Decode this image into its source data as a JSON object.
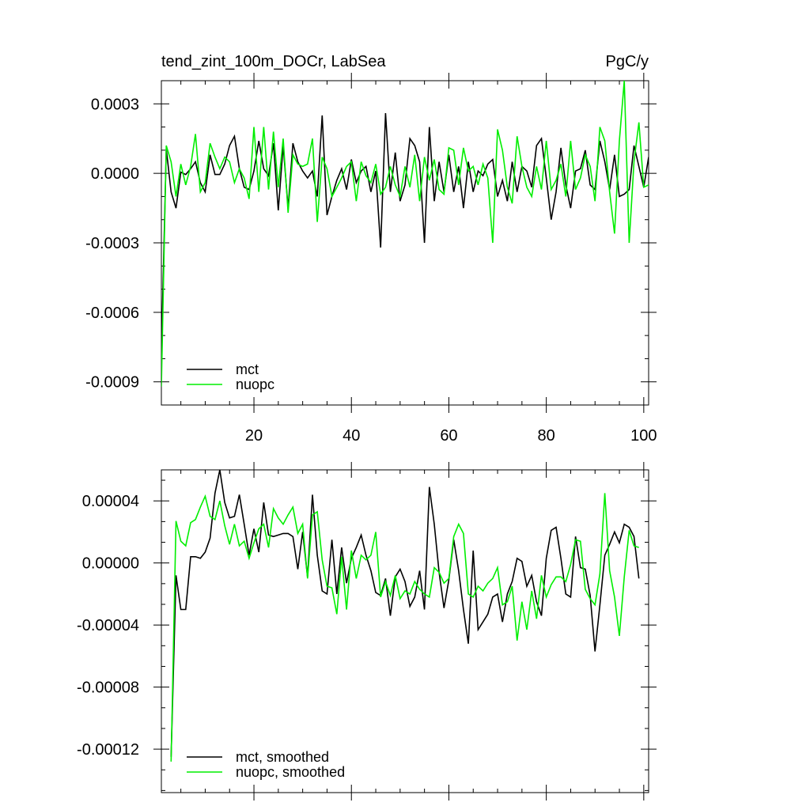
{
  "chart_data": [
    {
      "type": "line",
      "title": "tend_zint_100m_DOCr, LabSea",
      "units": "PgC/y",
      "xlim": [
        1,
        101
      ],
      "ylim": [
        -0.001,
        0.0004
      ],
      "x_ticks": [
        20,
        40,
        60,
        80,
        100
      ],
      "x_tick_labels": [
        "20",
        "40",
        "60",
        "80",
        "100"
      ],
      "y_ticks": [
        0.0003,
        0.0,
        -0.0003,
        -0.0006,
        -0.0009
      ],
      "y_tick_labels": [
        "0.0003",
        "0.0000",
        "-0.0003",
        "-0.0006",
        "-0.0009"
      ],
      "legend_position": "bottom-left",
      "series": [
        {
          "name": "mct",
          "color": "#000000",
          "x": [
            1,
            2,
            3,
            4,
            5,
            6,
            7,
            8,
            9,
            10,
            11,
            12,
            13,
            14,
            15,
            16,
            17,
            18,
            19,
            20,
            21,
            22,
            23,
            24,
            25,
            26,
            27,
            28,
            29,
            30,
            31,
            32,
            33,
            34,
            35,
            36,
            37,
            38,
            39,
            40,
            41,
            42,
            43,
            44,
            45,
            46,
            47,
            48,
            49,
            50,
            51,
            52,
            53,
            54,
            55,
            56,
            57,
            58,
            59,
            60,
            61,
            62,
            63,
            64,
            65,
            66,
            67,
            68,
            69,
            70,
            71,
            72,
            73,
            74,
            75,
            76,
            77,
            78,
            79,
            80,
            81,
            82,
            83,
            84,
            85,
            86,
            87,
            88,
            89,
            90,
            91,
            92,
            93,
            94,
            95,
            96,
            97,
            98,
            99,
            100,
            101
          ],
          "values": [
            -0.00078,
            0.000105,
            -8e-05,
            -0.00015,
            5e-06,
            -5e-06,
            2e-05,
            5e-05,
            -4e-05,
            -8e-05,
            8e-05,
            -5e-06,
            -5e-06,
            4e-05,
            0.00012,
            0.00016,
            2e-05,
            -6e-05,
            -7e-05,
            1e-05,
            0.00014,
            2e-05,
            -1e-05,
            0.00013,
            -0.00016,
            0.00012,
            -0.00015,
            0.00013,
            5e-05,
            1e-05,
            -2e-05,
            1e-05,
            -0.0001,
            0.00025,
            -0.00018,
            -0.0001,
            -3e-05,
            2e-05,
            -7e-05,
            6e-05,
            -4e-05,
            1e-05,
            3e-05,
            -8e-05,
            1e-05,
            -0.00032,
            0.00026,
            -8e-05,
            9e-05,
            -0.00012,
            -5e-05,
            0.00015,
            0.00012,
            5e-05,
            -0.0003,
            0.0002,
            -0.00012,
            5e-05,
            -8e-05,
            8e-05,
            -8e-05,
            3e-05,
            -0.00015,
            5e-05,
            -8e-05,
            1e-05,
            -1e-05,
            4e-05,
            6e-05,
            -0.0001,
            -3e-05,
            -0.00012,
            5e-05,
            -8e-05,
            3e-05,
            1e-05,
            -6e-05,
            0.00012,
            0.00015,
            -2e-05,
            -0.0002,
            -8e-05,
            0.00011,
            -5e-05,
            -0.00015,
            1e-05,
            2e-05,
            0.0001,
            -5e-05,
            -7e-05,
            0.00014,
            5e-05,
            -7e-05,
            8e-05,
            -0.0001,
            -9e-05,
            -7e-05,
            0.00012,
            3e-05,
            -6e-05,
            7e-05
          ],
          "sample_every": 1
        },
        {
          "name": "nuopc",
          "color": "#00ee00",
          "x": [
            1,
            2,
            3,
            4,
            5,
            6,
            7,
            8,
            9,
            10,
            11,
            12,
            13,
            14,
            15,
            16,
            17,
            18,
            19,
            20,
            21,
            22,
            23,
            24,
            25,
            26,
            27,
            28,
            29,
            30,
            31,
            32,
            33,
            34,
            35,
            36,
            37,
            38,
            39,
            40,
            41,
            42,
            43,
            44,
            45,
            46,
            47,
            48,
            49,
            50,
            51,
            52,
            53,
            54,
            55,
            56,
            57,
            58,
            59,
            60,
            61,
            62,
            63,
            64,
            65,
            66,
            67,
            68,
            69,
            70,
            71,
            72,
            73,
            74,
            75,
            76,
            77,
            78,
            79,
            80,
            81,
            82,
            83,
            84,
            85,
            86,
            87,
            88,
            89,
            90,
            91,
            92,
            93,
            94,
            95,
            96,
            97,
            98,
            99,
            100,
            101
          ],
          "values": [
            -0.00092,
            0.00012,
            5e-05,
            -0.0001,
            4e-05,
            -5e-05,
            3e-05,
            0.00017,
            -8e-05,
            -4e-05,
            0.00013,
            7e-05,
            2e-05,
            7e-05,
            5e-05,
            -4e-05,
            2e-05,
            -2e-05,
            -0.00011,
            0.0002,
            -8e-05,
            0.0002,
            -7e-05,
            0.00018,
            -6e-05,
            0.00015,
            -0.00017,
            8e-05,
            4e-05,
            3e-05,
            4e-05,
            0.00015,
            -0.00021,
            7e-05,
            2e-05,
            -0.0001,
            -6e-05,
            -2e-05,
            3e-05,
            5e-05,
            -0.00012,
            5e-05,
            -1e-05,
            -4e-05,
            4e-05,
            -9e-05,
            -6e-05,
            3e-05,
            -5e-05,
            -0.0001,
            3e-05,
            -6e-05,
            8e-05,
            -0.00012,
            7e-05,
            -3e-05,
            6e-05,
            -7e-05,
            -9e-05,
            0.00011,
            0.0001,
            -5e-05,
            0.00011,
            1e-05,
            3e-05,
            -5e-05,
            4e-05,
            -2e-05,
            -0.0003,
            0.00019,
            0.0001,
            -6e-05,
            -0.00013,
            0.00016,
            3e-05,
            -6e-05,
            -0.0001,
            3e-05,
            -7e-05,
            0.00014,
            -7e-05,
            -3e-05,
            4e-05,
            -0.0001,
            0.00014,
            -7e-05,
            -2e-05,
            8e-05,
            3e-05,
            -0.00012,
            0.0002,
            0.00014,
            -8e-05,
            -0.00026,
            0.00014,
            0.0004,
            -0.0003,
            5e-05,
            0.00022,
            -6e-05,
            -5e-05
          ],
          "sample_every": 1
        }
      ]
    },
    {
      "type": "line",
      "title": "",
      "xlim": [
        1,
        101
      ],
      "ylim": [
        -0.000148,
        6e-05
      ],
      "x_ticks": [
        20,
        40,
        60,
        80,
        100
      ],
      "y_ticks": [
        4e-05,
        0.0,
        -4e-05,
        -8e-05,
        -0.00012
      ],
      "y_tick_labels": [
        "0.00004",
        "0.00000",
        "-0.00004",
        "-0.00008",
        "-0.00012"
      ],
      "legend_position": "bottom-left",
      "series": [
        {
          "name": "mct, smoothed",
          "color": "#000000",
          "x": [
            3,
            4,
            5,
            6,
            7,
            8,
            9,
            10,
            11,
            12,
            13,
            14,
            15,
            16,
            17,
            18,
            19,
            20,
            21,
            22,
            23,
            24,
            25,
            26,
            27,
            28,
            29,
            30,
            31,
            32,
            33,
            34,
            35,
            36,
            37,
            38,
            39,
            40,
            41,
            42,
            43,
            44,
            45,
            46,
            47,
            48,
            49,
            50,
            51,
            52,
            53,
            54,
            55,
            56,
            57,
            58,
            59,
            60,
            61,
            62,
            63,
            64,
            65,
            66,
            67,
            68,
            69,
            70,
            71,
            72,
            73,
            74,
            75,
            76,
            77,
            78,
            79,
            80,
            81,
            82,
            83,
            84,
            85,
            86,
            87,
            88,
            89,
            90,
            91,
            92,
            93,
            94,
            95,
            96,
            97,
            98,
            99
          ],
          "values": [
            -0.000125,
            -8e-06,
            -3e-05,
            -3e-05,
            4e-06,
            4e-06,
            3e-06,
            7e-06,
            1.6e-05,
            4.5e-05,
            6e-05,
            3.9e-05,
            2.9e-05,
            3e-05,
            4.4e-05,
            2.5e-05,
            5e-06,
            2.2e-05,
            7e-06,
            3.9e-05,
            1.8e-05,
            1.7e-05,
            1.8e-05,
            1.9e-05,
            1.9e-05,
            1.7e-05,
            -4e-06,
            2e-05,
            -9e-06,
            4.4e-05,
            5e-06,
            -1.8e-05,
            -2e-05,
            1.5e-05,
            -2e-05,
            1e-05,
            -1.3e-05,
            3e-06,
            1e-05,
            1.8e-05,
            5e-06,
            -5e-06,
            -1.9e-05,
            -2.1e-05,
            -1e-05,
            -3.4e-05,
            -9e-06,
            -4e-06,
            -1.2e-05,
            -2.8e-05,
            -2.2e-05,
            -5e-06,
            -3e-05,
            4.9e-05,
            2.5e-05,
            -6e-06,
            -2.9e-05,
            -1.1e-05,
            1.5e-05,
            -5e-06,
            -3e-05,
            -5.2e-05,
            8e-06,
            -4.3e-05,
            -3.8e-05,
            -3.3e-05,
            -2.2e-05,
            -2e-05,
            -3.8e-05,
            -2e-05,
            -1.2e-05,
            3e-06,
            1e-06,
            -1.5e-05,
            -8e-06,
            -2.5e-05,
            -3.4e-05,
            3e-06,
            2.1e-05,
            2.3e-05,
            3e-06,
            -2e-05,
            -2.2e-05,
            1.7e-05,
            -3e-06,
            -4e-06,
            -2.1e-05,
            -5.7e-05,
            -2.7e-05,
            5e-06,
            1.2e-05,
            2e-05,
            1.3e-05,
            2.5e-05,
            2.3e-05,
            1.7e-05,
            -1e-05
          ],
          "sample_every": 1
        },
        {
          "name": "nuopc, smoothed",
          "color": "#00ee00",
          "x": [
            3,
            4,
            5,
            6,
            7,
            8,
            9,
            10,
            11,
            12,
            13,
            14,
            15,
            16,
            17,
            18,
            19,
            20,
            21,
            22,
            23,
            24,
            25,
            26,
            27,
            28,
            29,
            30,
            31,
            32,
            33,
            34,
            35,
            36,
            37,
            38,
            39,
            40,
            41,
            42,
            43,
            44,
            45,
            46,
            47,
            48,
            49,
            50,
            51,
            52,
            53,
            54,
            55,
            56,
            57,
            58,
            59,
            60,
            61,
            62,
            63,
            64,
            65,
            66,
            67,
            68,
            69,
            70,
            71,
            72,
            73,
            74,
            75,
            76,
            77,
            78,
            79,
            80,
            81,
            82,
            83,
            84,
            85,
            86,
            87,
            88,
            89,
            90,
            91,
            92,
            93,
            94,
            95,
            96,
            97,
            98,
            99
          ],
          "values": [
            -0.000128,
            2.7e-05,
            1.4e-05,
            1.1e-05,
            2.6e-05,
            2.8e-05,
            3.6e-05,
            4.3e-05,
            3e-05,
            2.8e-05,
            4e-05,
            2.4e-05,
            1.2e-05,
            2.5e-05,
            1.1e-05,
            1.4e-05,
            3e-06,
            1.3e-05,
            2.2e-05,
            2.5e-05,
            1e-05,
            3.5e-05,
            2.9e-05,
            2.5e-05,
            3.1e-05,
            3.6e-05,
            1.9e-05,
            2.5e-05,
            -1e-05,
            3.1e-05,
            3.3e-05,
            2e-06,
            -1.5e-05,
            -1.6e-05,
            -3.3e-05,
            4e-06,
            -3e-05,
            8e-06,
            -1e-05,
            5e-06,
            2e-06,
            5e-06,
            2e-05,
            -2.2e-05,
            -1.2e-05,
            -2.1e-05,
            -8e-06,
            -2.3e-05,
            -1.8e-05,
            -2e-05,
            -1.2e-05,
            -1.7e-05,
            -2e-05,
            -2.2e-05,
            -3e-06,
            -6e-06,
            -1.3e-05,
            -1e-05,
            1.7e-05,
            2.5e-05,
            1.9e-05,
            -2e-05,
            -2.2e-05,
            -1.5e-05,
            -1.8e-05,
            -1.3e-05,
            -1e-05,
            -3e-06,
            -2.7e-05,
            -2.5e-05,
            -1.5e-05,
            -5e-05,
            -2.5e-05,
            -4.3e-05,
            -1.8e-05,
            -3.6e-05,
            -8e-06,
            -2.2e-05,
            -1.4e-05,
            -9e-06,
            -9e-06,
            -1.2e-05,
            -1e-06,
            1.5e-05,
            1.4e-05,
            -1.7e-05,
            -2.3e-05,
            -2.7e-05,
            -7e-06,
            4.5e-05,
            -5e-06,
            -2.2e-05,
            -4.7e-05,
            -9e-06,
            2.1e-05,
            1.1e-05,
            1e-05
          ],
          "sample_every": 1
        }
      ]
    }
  ]
}
